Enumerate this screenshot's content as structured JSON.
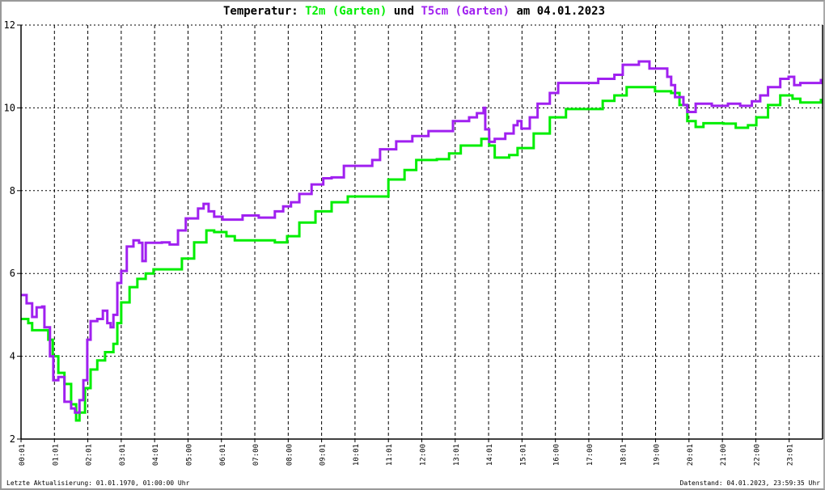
{
  "title": {
    "prefix": "Temperatur: ",
    "series1": "T2m (Garten)",
    "middle": " und ",
    "series2": "T5cm (Garten)",
    "suffix": " am 04.01.2023"
  },
  "footer": {
    "left": "Letzte Aktualisierung: 01.01.1970, 01:00:00 Uhr",
    "right": "Datenstand: 04.01.2023, 23:59:35 Uhr"
  },
  "chart_data": {
    "type": "line",
    "title": "Temperatur: T2m (Garten) und T5cm (Garten) am 04.01.2023",
    "xlabel": "",
    "ylabel": "",
    "ylim": [
      2,
      12
    ],
    "yticks": [
      "2",
      "4",
      "6",
      "8",
      "10",
      "12"
    ],
    "xlim": [
      "00:00",
      "24:00"
    ],
    "xticks": [
      "00:01",
      "01:01",
      "02:01",
      "03:01",
      "04:01",
      "05:00",
      "06:01",
      "07:00",
      "08:00",
      "09:01",
      "10:01",
      "11:01",
      "12:00",
      "13:01",
      "14:01",
      "15:01",
      "16:00",
      "17:00",
      "18:01",
      "19:00",
      "20:01",
      "21:00",
      "22:00",
      "23:01"
    ],
    "grid": true,
    "series": [
      {
        "name": "T2m (Garten)",
        "color": "#00ee00",
        "points": [
          [
            "00:00",
            4.9
          ],
          [
            "00:13",
            4.8
          ],
          [
            "00:20",
            4.63
          ],
          [
            "00:42",
            4.63
          ],
          [
            "00:49",
            4.4
          ],
          [
            "00:57",
            4.0
          ],
          [
            "01:07",
            3.6
          ],
          [
            "01:18",
            3.33
          ],
          [
            "01:30",
            2.84
          ],
          [
            "01:39",
            2.45
          ],
          [
            "01:45",
            2.64
          ],
          [
            "01:55",
            3.23
          ],
          [
            "02:05",
            3.68
          ],
          [
            "02:17",
            3.9
          ],
          [
            "02:31",
            4.1
          ],
          [
            "02:46",
            4.3
          ],
          [
            "02:53",
            4.8
          ],
          [
            "03:00",
            5.3
          ],
          [
            "03:15",
            5.67
          ],
          [
            "03:29",
            5.87
          ],
          [
            "03:44",
            6.0
          ],
          [
            "03:58",
            6.1
          ],
          [
            "04:27",
            6.1
          ],
          [
            "04:49",
            6.36
          ],
          [
            "05:11",
            6.75
          ],
          [
            "05:33",
            7.04
          ],
          [
            "05:47",
            7.0
          ],
          [
            "06:09",
            6.9
          ],
          [
            "06:24",
            6.8
          ],
          [
            "07:07",
            6.8
          ],
          [
            "07:36",
            6.75
          ],
          [
            "07:58",
            6.9
          ],
          [
            "08:20",
            7.23
          ],
          [
            "08:49",
            7.5
          ],
          [
            "09:18",
            7.72
          ],
          [
            "09:47",
            7.86
          ],
          [
            "10:31",
            7.86
          ],
          [
            "11:00",
            8.27
          ],
          [
            "11:29",
            8.5
          ],
          [
            "11:50",
            8.74
          ],
          [
            "12:27",
            8.76
          ],
          [
            "12:49",
            8.9
          ],
          [
            "13:10",
            9.09
          ],
          [
            "13:47",
            9.25
          ],
          [
            "14:01",
            9.09
          ],
          [
            "14:11",
            8.8
          ],
          [
            "14:37",
            8.86
          ],
          [
            "14:52",
            9.03
          ],
          [
            "15:21",
            9.38
          ],
          [
            "15:50",
            9.77
          ],
          [
            "16:19",
            9.97
          ],
          [
            "17:03",
            9.97
          ],
          [
            "17:25",
            10.17
          ],
          [
            "17:46",
            10.3
          ],
          [
            "18:08",
            10.5
          ],
          [
            "18:44",
            10.5
          ],
          [
            "18:59",
            10.4
          ],
          [
            "19:28",
            10.36
          ],
          [
            "19:43",
            10.07
          ],
          [
            "19:57",
            9.68
          ],
          [
            "20:12",
            9.54
          ],
          [
            "20:26",
            9.63
          ],
          [
            "21:02",
            9.62
          ],
          [
            "21:24",
            9.52
          ],
          [
            "21:46",
            9.58
          ],
          [
            "22:01",
            9.77
          ],
          [
            "22:22",
            10.07
          ],
          [
            "22:44",
            10.3
          ],
          [
            "23:06",
            10.22
          ],
          [
            "23:20",
            10.13
          ],
          [
            "23:57",
            10.22
          ]
        ]
      },
      {
        "name": "T5cm (Garten)",
        "color": "#a020f0",
        "points": [
          [
            "00:00",
            5.48
          ],
          [
            "00:10",
            5.28
          ],
          [
            "00:20",
            4.95
          ],
          [
            "00:28",
            5.18
          ],
          [
            "00:38",
            5.2
          ],
          [
            "00:42",
            4.7
          ],
          [
            "00:52",
            4.0
          ],
          [
            "00:58",
            3.42
          ],
          [
            "01:07",
            3.5
          ],
          [
            "01:18",
            2.9
          ],
          [
            "01:30",
            2.74
          ],
          [
            "01:37",
            2.64
          ],
          [
            "01:45",
            2.94
          ],
          [
            "01:52",
            3.42
          ],
          [
            "01:59",
            4.4
          ],
          [
            "02:05",
            4.85
          ],
          [
            "02:17",
            4.9
          ],
          [
            "02:27",
            5.1
          ],
          [
            "02:35",
            4.8
          ],
          [
            "02:41",
            4.7
          ],
          [
            "02:46",
            5.0
          ],
          [
            "02:53",
            5.77
          ],
          [
            "03:00",
            6.06
          ],
          [
            "03:10",
            6.65
          ],
          [
            "03:22",
            6.8
          ],
          [
            "03:32",
            6.74
          ],
          [
            "03:38",
            6.3
          ],
          [
            "03:44",
            6.74
          ],
          [
            "04:13",
            6.75
          ],
          [
            "04:27",
            6.7
          ],
          [
            "04:42",
            7.04
          ],
          [
            "04:56",
            7.33
          ],
          [
            "05:18",
            7.57
          ],
          [
            "05:28",
            7.68
          ],
          [
            "05:37",
            7.5
          ],
          [
            "05:47",
            7.37
          ],
          [
            "06:02",
            7.3
          ],
          [
            "06:16",
            7.3
          ],
          [
            "06:38",
            7.4
          ],
          [
            "07:07",
            7.35
          ],
          [
            "07:36",
            7.5
          ],
          [
            "07:51",
            7.62
          ],
          [
            "08:05",
            7.72
          ],
          [
            "08:20",
            7.92
          ],
          [
            "08:42",
            8.15
          ],
          [
            "09:03",
            8.3
          ],
          [
            "09:18",
            8.32
          ],
          [
            "09:40",
            8.6
          ],
          [
            "10:09",
            8.6
          ],
          [
            "10:31",
            8.74
          ],
          [
            "10:45",
            9.0
          ],
          [
            "11:14",
            9.19
          ],
          [
            "11:43",
            9.32
          ],
          [
            "12:12",
            9.44
          ],
          [
            "12:56",
            9.68
          ],
          [
            "13:25",
            9.77
          ],
          [
            "13:39",
            9.87
          ],
          [
            "13:51",
            10.0
          ],
          [
            "13:54",
            9.48
          ],
          [
            "14:01",
            9.18
          ],
          [
            "14:11",
            9.25
          ],
          [
            "14:30",
            9.38
          ],
          [
            "14:45",
            9.58
          ],
          [
            "14:52",
            9.68
          ],
          [
            "14:59",
            9.5
          ],
          [
            "15:14",
            9.77
          ],
          [
            "15:28",
            10.1
          ],
          [
            "15:50",
            10.36
          ],
          [
            "16:05",
            10.6
          ],
          [
            "16:48",
            10.6
          ],
          [
            "17:17",
            10.7
          ],
          [
            "17:46",
            10.8
          ],
          [
            "18:01",
            11.04
          ],
          [
            "18:30",
            11.12
          ],
          [
            "18:44",
            11.12
          ],
          [
            "18:49",
            10.95
          ],
          [
            "19:13",
            10.95
          ],
          [
            "19:21",
            10.75
          ],
          [
            "19:28",
            10.55
          ],
          [
            "19:35",
            10.26
          ],
          [
            "19:50",
            10.07
          ],
          [
            "19:57",
            9.9
          ],
          [
            "20:12",
            10.1
          ],
          [
            "20:41",
            10.05
          ],
          [
            "21:10",
            10.1
          ],
          [
            "21:32",
            10.05
          ],
          [
            "21:53",
            10.16
          ],
          [
            "22:08",
            10.3
          ],
          [
            "22:22",
            10.5
          ],
          [
            "22:44",
            10.7
          ],
          [
            "22:59",
            10.75
          ],
          [
            "23:09",
            10.55
          ],
          [
            "23:20",
            10.6
          ],
          [
            "23:57",
            10.7
          ]
        ]
      }
    ]
  }
}
